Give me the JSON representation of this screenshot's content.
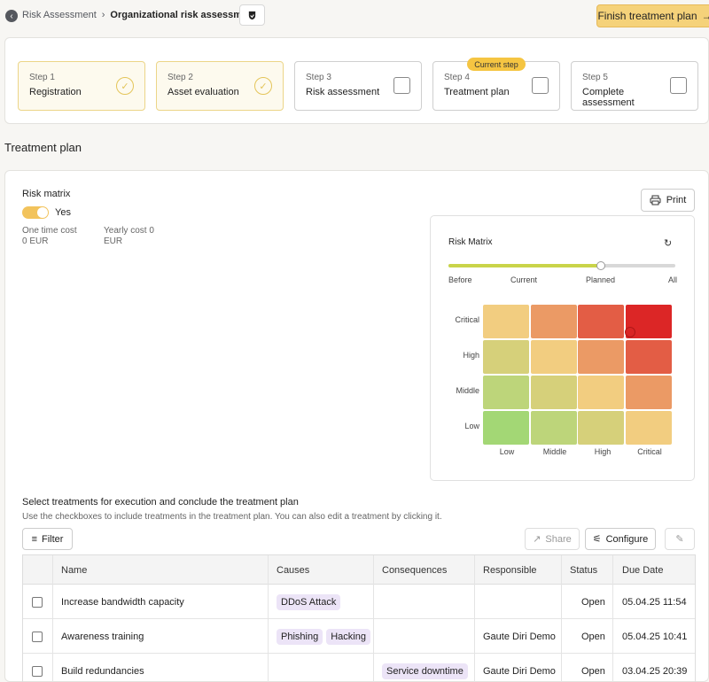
{
  "header": {
    "breadcrumb_parent": "Risk Assessment",
    "breadcrumb_sep": "›",
    "breadcrumb_current": "Organizational risk assessment",
    "finish_label": "Finish treatment plan",
    "finish_arrow": "→"
  },
  "steps": [
    {
      "num": "Step 1",
      "title": "Registration",
      "state": "done"
    },
    {
      "num": "Step 2",
      "title": "Asset evaluation",
      "state": "done"
    },
    {
      "num": "Step 3",
      "title": "Risk assessment",
      "state": "todo"
    },
    {
      "num": "Step 4",
      "title": "Treatment plan",
      "state": "current"
    },
    {
      "num": "Step 5",
      "title": "Complete assessment",
      "state": "todo"
    }
  ],
  "current_step_tag": "Current step",
  "section_title": "Treatment plan",
  "risk_matrix_toggle": {
    "label": "Risk matrix",
    "value": "Yes",
    "on": true
  },
  "costs": {
    "one_time_label": "One time cost",
    "one_time_value": "0 EUR",
    "yearly_label": "Yearly cost 0",
    "yearly_value": "EUR"
  },
  "print_label": "Print",
  "matrix": {
    "title": "Risk Matrix",
    "slider_labels": [
      "Before",
      "Current",
      "Planned",
      "All"
    ],
    "slider_value": "Planned",
    "row_labels": [
      "Critical",
      "High",
      "Middle",
      "Low"
    ],
    "col_labels": [
      "Low",
      "Middle",
      "High",
      "Critical"
    ],
    "cell_colors": [
      [
        "#f2cd80",
        "#eb9a65",
        "#e35d45",
        "#dc2626"
      ],
      [
        "#d6d07a",
        "#f2cd80",
        "#eb9a65",
        "#e35d45"
      ],
      [
        "#bdd57a",
        "#d6d07a",
        "#f2cd80",
        "#eb9a65"
      ],
      [
        "#a3d775",
        "#bdd57a",
        "#d6d07a",
        "#f2cd80"
      ]
    ]
  },
  "treatments": {
    "title": "Select treatments for execution and conclude the treatment plan",
    "subtitle": "Use the checkboxes to include treatments in the treatment plan. You can also edit a treatment by clicking it.",
    "filter_label": "Filter",
    "share_label": "Share",
    "configure_label": "Configure",
    "columns": [
      "Name",
      "Causes",
      "Consequences",
      "Responsible",
      "Status",
      "Due Date"
    ],
    "rows": [
      {
        "name": "Increase bandwidth capacity",
        "causes": [
          "DDoS Attack"
        ],
        "consequences": [],
        "responsible": "",
        "status": "Open",
        "due": "05.04.25 11:54"
      },
      {
        "name": "Awareness training",
        "causes": [
          "Phishing",
          "Hacking"
        ],
        "consequences": [],
        "responsible": "Gaute Diri Demo",
        "status": "Open",
        "due": "05.04.25 10:41"
      },
      {
        "name": "Build redundancies",
        "causes": [],
        "consequences": [
          "Service downtime"
        ],
        "responsible": "Gaute Diri Demo",
        "status": "Open",
        "due": "03.04.25 20:39"
      }
    ]
  }
}
